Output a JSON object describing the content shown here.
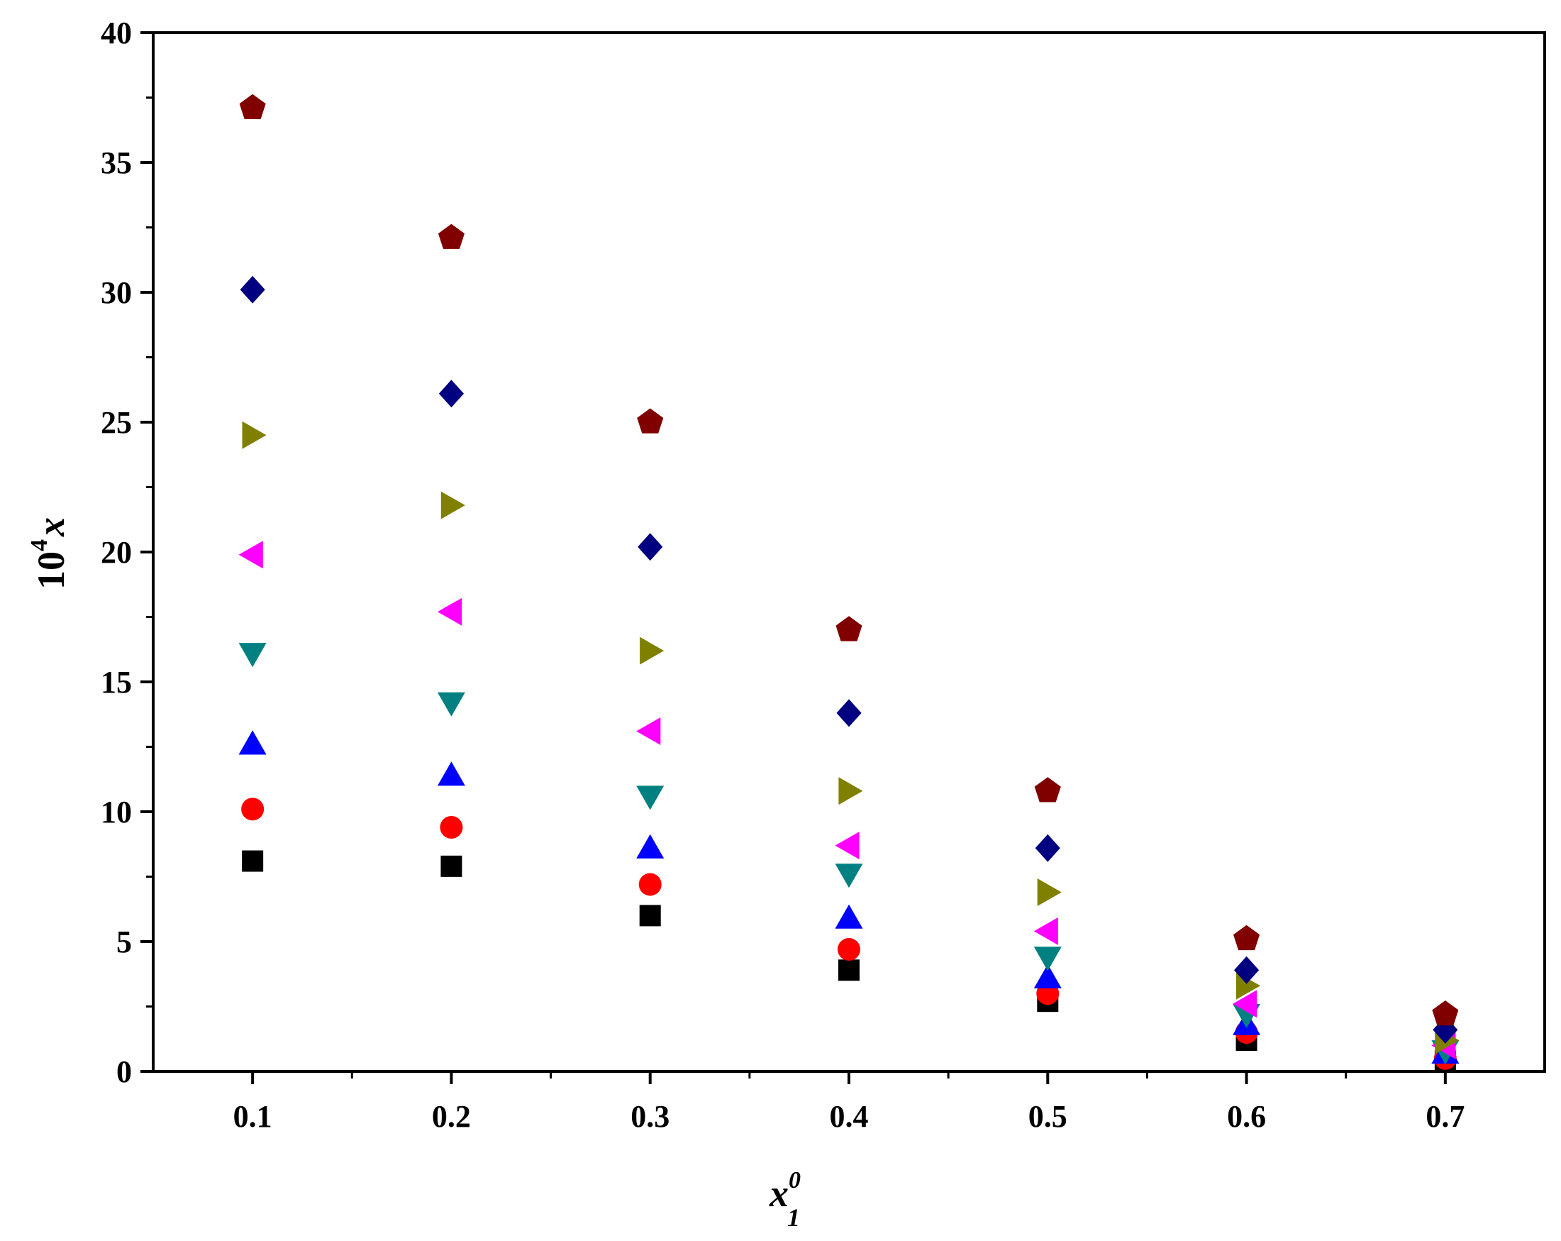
{
  "chart_data": {
    "type": "scatter",
    "title": "",
    "xlabel": {
      "base": "x",
      "sup": "0",
      "sub": "1"
    },
    "ylabel": {
      "prefix": "10",
      "sup": "4",
      "var": "x"
    },
    "xlim": [
      0.05,
      0.75
    ],
    "ylim": [
      0,
      40
    ],
    "xticks": [
      0.1,
      0.2,
      0.3,
      0.4,
      0.5,
      0.6,
      0.7
    ],
    "xtick_labels": [
      "0.1",
      "0.2",
      "0.3",
      "0.4",
      "0.5",
      "0.6",
      "0.7"
    ],
    "xminor": [
      0.15,
      0.25,
      0.35,
      0.45,
      0.55,
      0.65
    ],
    "yticks": [
      0,
      5,
      10,
      15,
      20,
      25,
      30,
      35,
      40
    ],
    "ytick_labels": [
      "0",
      "5",
      "10",
      "15",
      "20",
      "25",
      "30",
      "35",
      "40"
    ],
    "yminor": [
      2.5,
      7.5,
      12.5,
      17.5,
      22.5,
      27.5,
      32.5,
      37.5
    ],
    "grid": false,
    "legend": "none",
    "x": [
      0.1,
      0.2,
      0.3,
      0.4,
      0.5,
      0.6,
      0.7
    ],
    "series": [
      {
        "marker": "square",
        "color": "#000000",
        "values": [
          8.1,
          7.9,
          6.0,
          3.9,
          2.7,
          1.2,
          0.4
        ]
      },
      {
        "marker": "circle",
        "color": "#ff0000",
        "values": [
          10.1,
          9.4,
          7.2,
          4.7,
          3.0,
          1.5,
          0.5
        ]
      },
      {
        "marker": "triangle-up",
        "color": "#0000ff",
        "values": [
          12.6,
          11.4,
          8.6,
          5.9,
          3.6,
          1.8,
          0.7
        ]
      },
      {
        "marker": "triangle-down",
        "color": "#008080",
        "values": [
          16.1,
          14.2,
          10.6,
          7.6,
          4.4,
          2.2,
          0.8
        ]
      },
      {
        "marker": "triangle-left",
        "color": "#ff00ff",
        "values": [
          19.9,
          17.7,
          13.1,
          8.7,
          5.4,
          2.6,
          1.0
        ]
      },
      {
        "marker": "triangle-right",
        "color": "#808000",
        "values": [
          24.5,
          21.8,
          16.2,
          10.8,
          6.9,
          3.3,
          1.2
        ]
      },
      {
        "marker": "diamond",
        "color": "#000080",
        "values": [
          30.1,
          26.1,
          20.2,
          13.8,
          8.6,
          3.9,
          1.6
        ]
      },
      {
        "marker": "pentagon",
        "color": "#800000",
        "values": [
          37.1,
          32.1,
          25.0,
          17.0,
          10.8,
          5.1,
          2.2
        ]
      }
    ]
  }
}
